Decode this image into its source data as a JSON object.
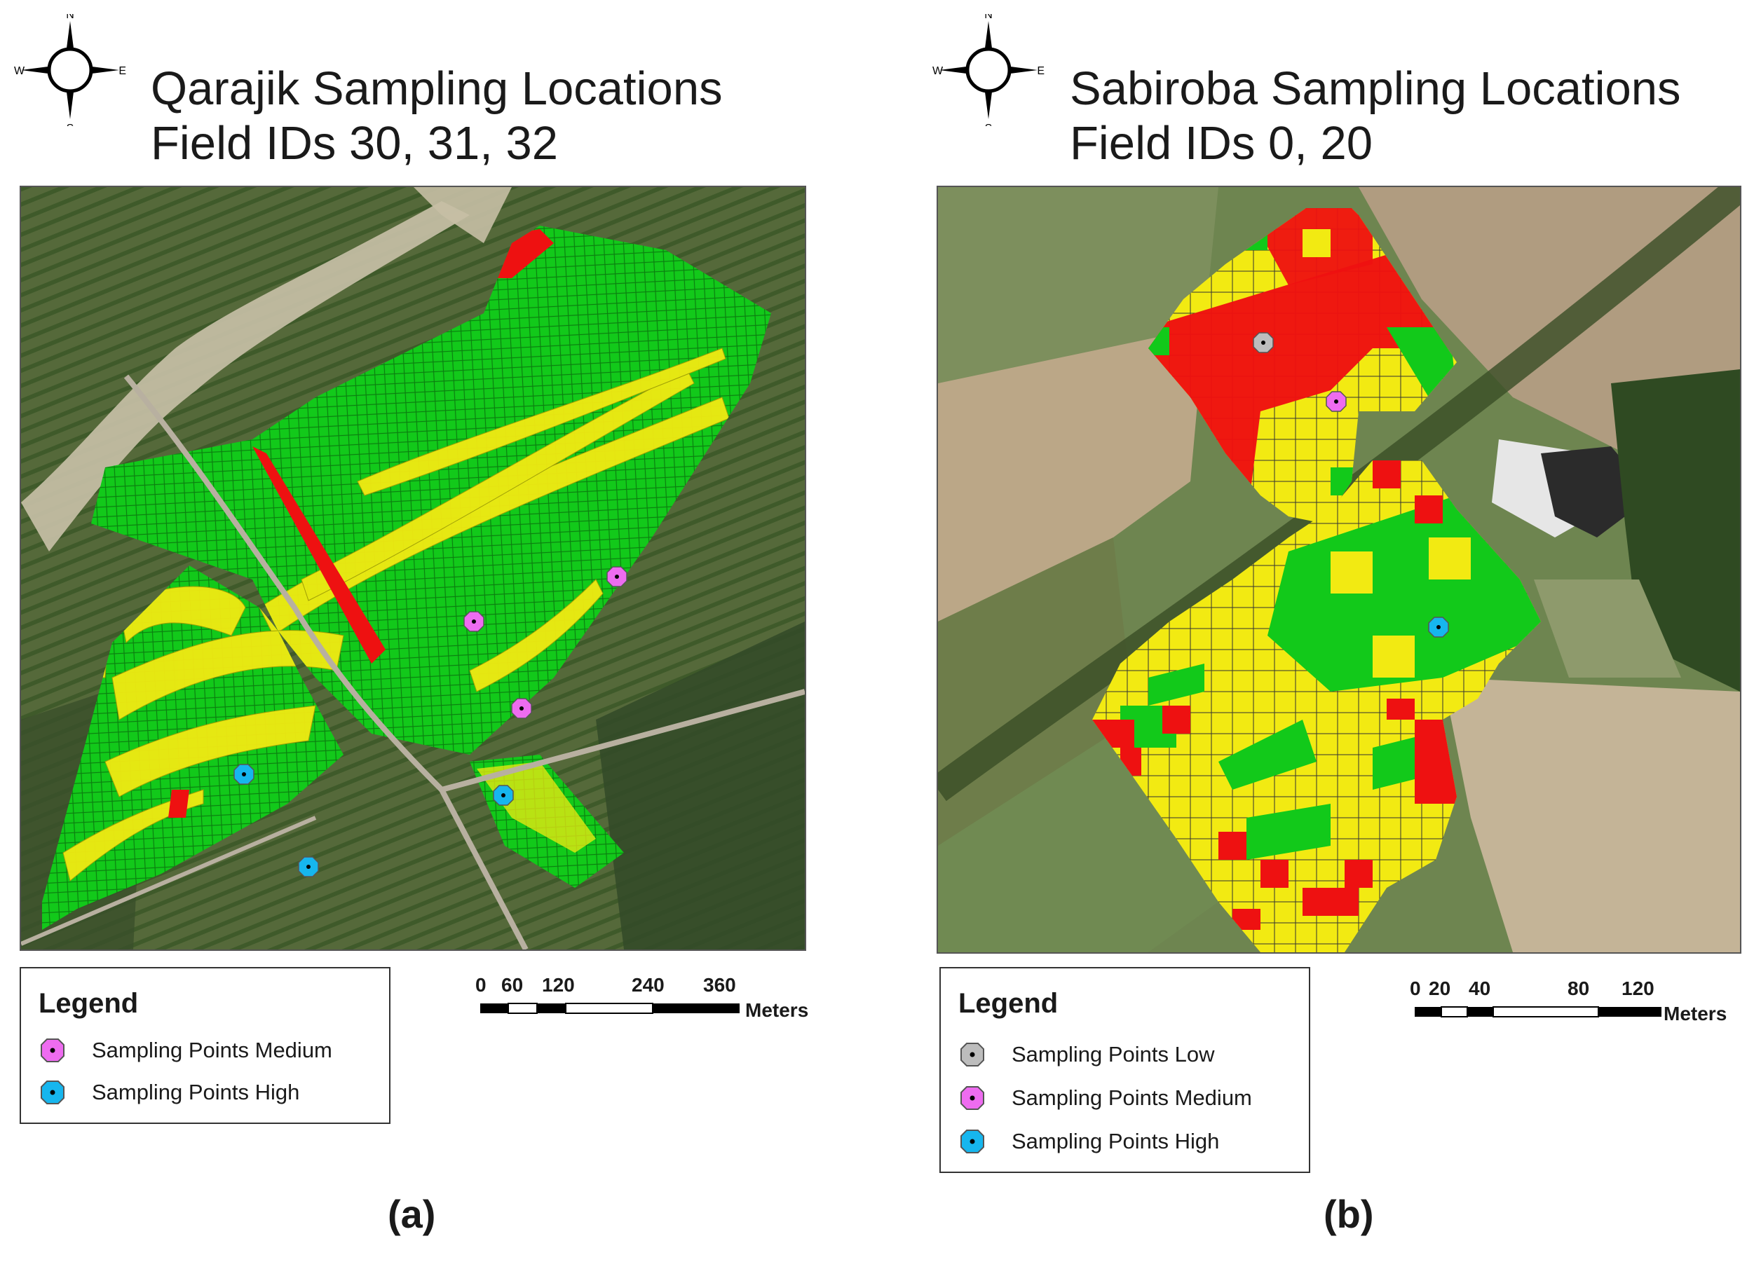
{
  "compass": {
    "n": "N",
    "s": "S",
    "e": "E",
    "w": "W"
  },
  "panel_a": {
    "title_line1": "Qarajik Sampling Locations",
    "title_line2": "Field IDs 30, 31, 32",
    "legend": {
      "title": "Legend",
      "items": [
        {
          "label": "Sampling Points Medium",
          "color": "#ee6cf0"
        },
        {
          "label": "Sampling Points High",
          "color": "#16b6ee"
        }
      ]
    },
    "scale": {
      "ticks": [
        "0",
        "60",
        "120",
        "240",
        "360"
      ],
      "unit": "Meters"
    },
    "caption": "(a)"
  },
  "panel_b": {
    "title_line1": "Sabiroba Sampling Locations",
    "title_line2": "Field IDs 0, 20",
    "legend": {
      "title": "Legend",
      "items": [
        {
          "label": "Sampling Points Low",
          "color": "#bdbdbd"
        },
        {
          "label": "Sampling Points Medium",
          "color": "#ee6cf0"
        },
        {
          "label": "Sampling Points High",
          "color": "#16b6ee"
        }
      ]
    },
    "scale": {
      "ticks": [
        "0",
        "20",
        "40",
        "80",
        "120"
      ],
      "unit": "Meters"
    },
    "caption": "(b)"
  },
  "colors": {
    "zone_green": "#12c91a",
    "zone_yellow": "#f2ea12",
    "zone_red": "#ee1111"
  }
}
